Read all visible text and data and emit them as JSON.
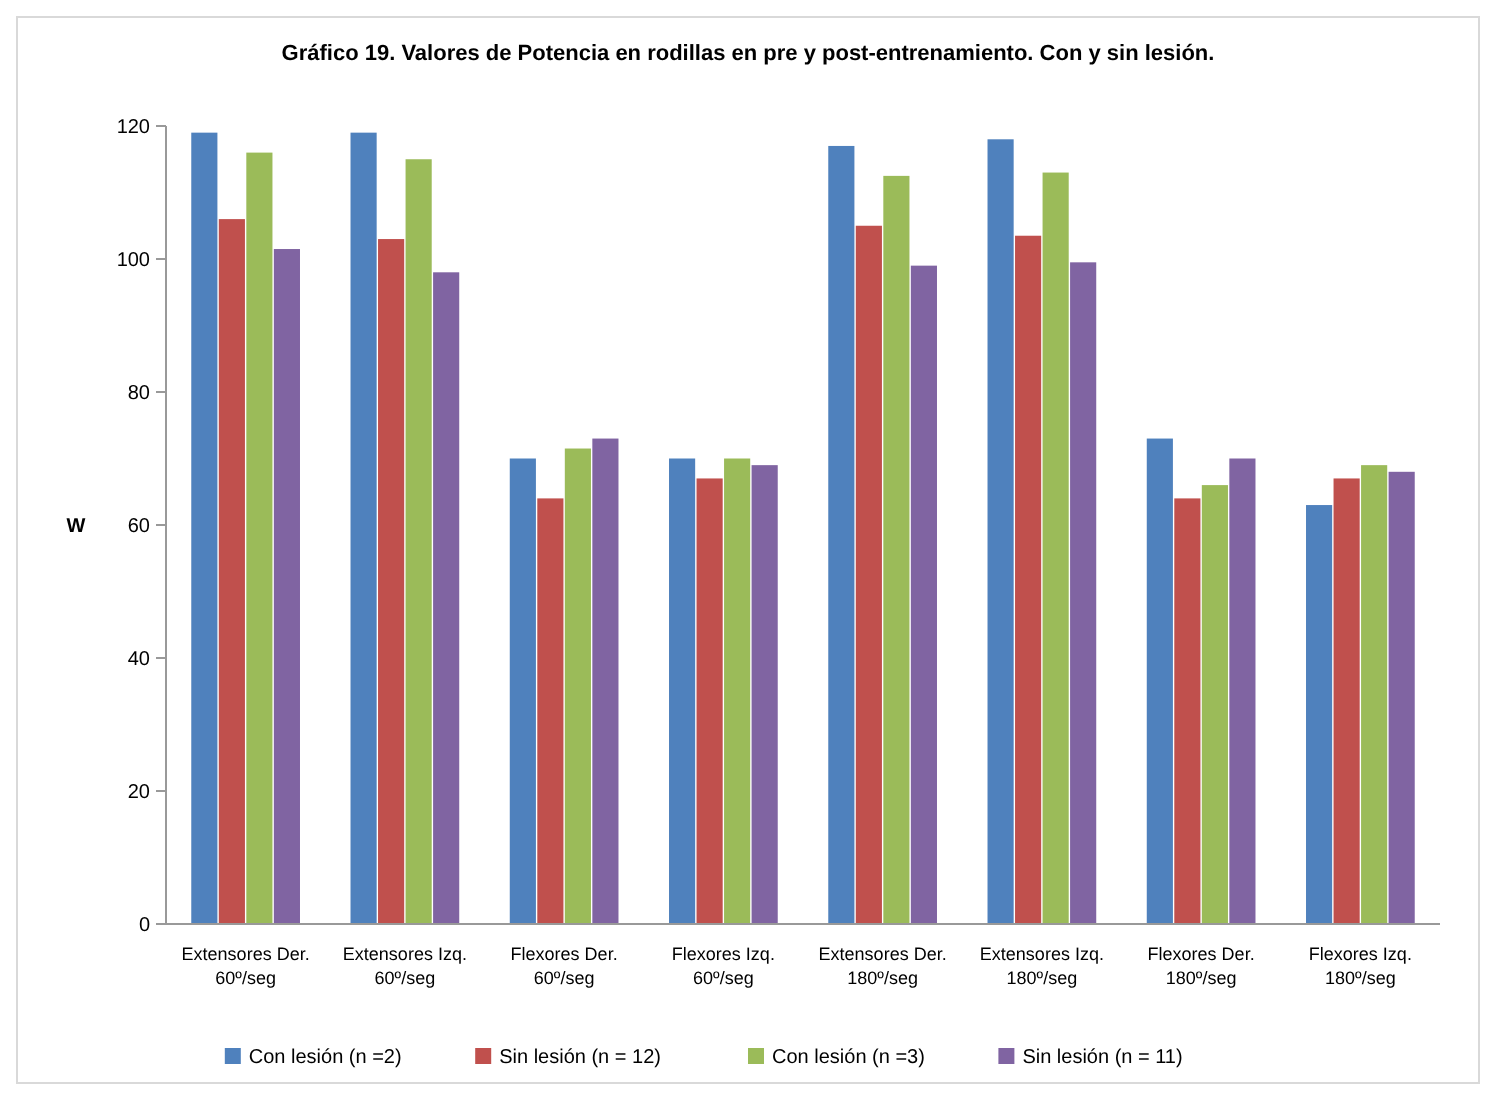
{
  "chart_data": {
    "type": "bar",
    "title": "Gráfico 19. Valores de Potencia en rodillas en pre y post-entrenamiento.  Con y sin lesión.",
    "ylabel": "W",
    "categories": [
      "Extensores Der. 60º/seg",
      "Extensores Izq. 60º/seg",
      "Flexores Der. 60º/seg",
      "Flexores Izq. 60º/seg",
      "Extensores Der. 180º/seg",
      "Extensores Izq. 180º/seg",
      "Flexores Der. 180º/seg",
      "Flexores Izq. 180º/seg"
    ],
    "series": [
      {
        "name": "Con lesión (n =2)",
        "color": "#4f81bd",
        "values": [
          119,
          119,
          70,
          70,
          117,
          118,
          73,
          63
        ]
      },
      {
        "name": "Sin lesión (n = 12)",
        "color": "#c0504d",
        "values": [
          106,
          103,
          64,
          67,
          105,
          103.5,
          64,
          67
        ]
      },
      {
        "name": "Con lesión (n =3)",
        "color": "#9bbb59",
        "values": [
          116,
          115,
          71.5,
          70,
          112.5,
          113,
          66,
          69
        ]
      },
      {
        "name": "Sin lesión (n = 11)",
        "color": "#8064a2",
        "values": [
          101.5,
          98,
          73,
          69,
          99,
          99.5,
          70,
          68
        ]
      }
    ],
    "ylim": [
      0,
      120
    ],
    "yticks": [
      0,
      20,
      40,
      60,
      80,
      100,
      120
    ],
    "grid": false,
    "legend": "bottom"
  }
}
